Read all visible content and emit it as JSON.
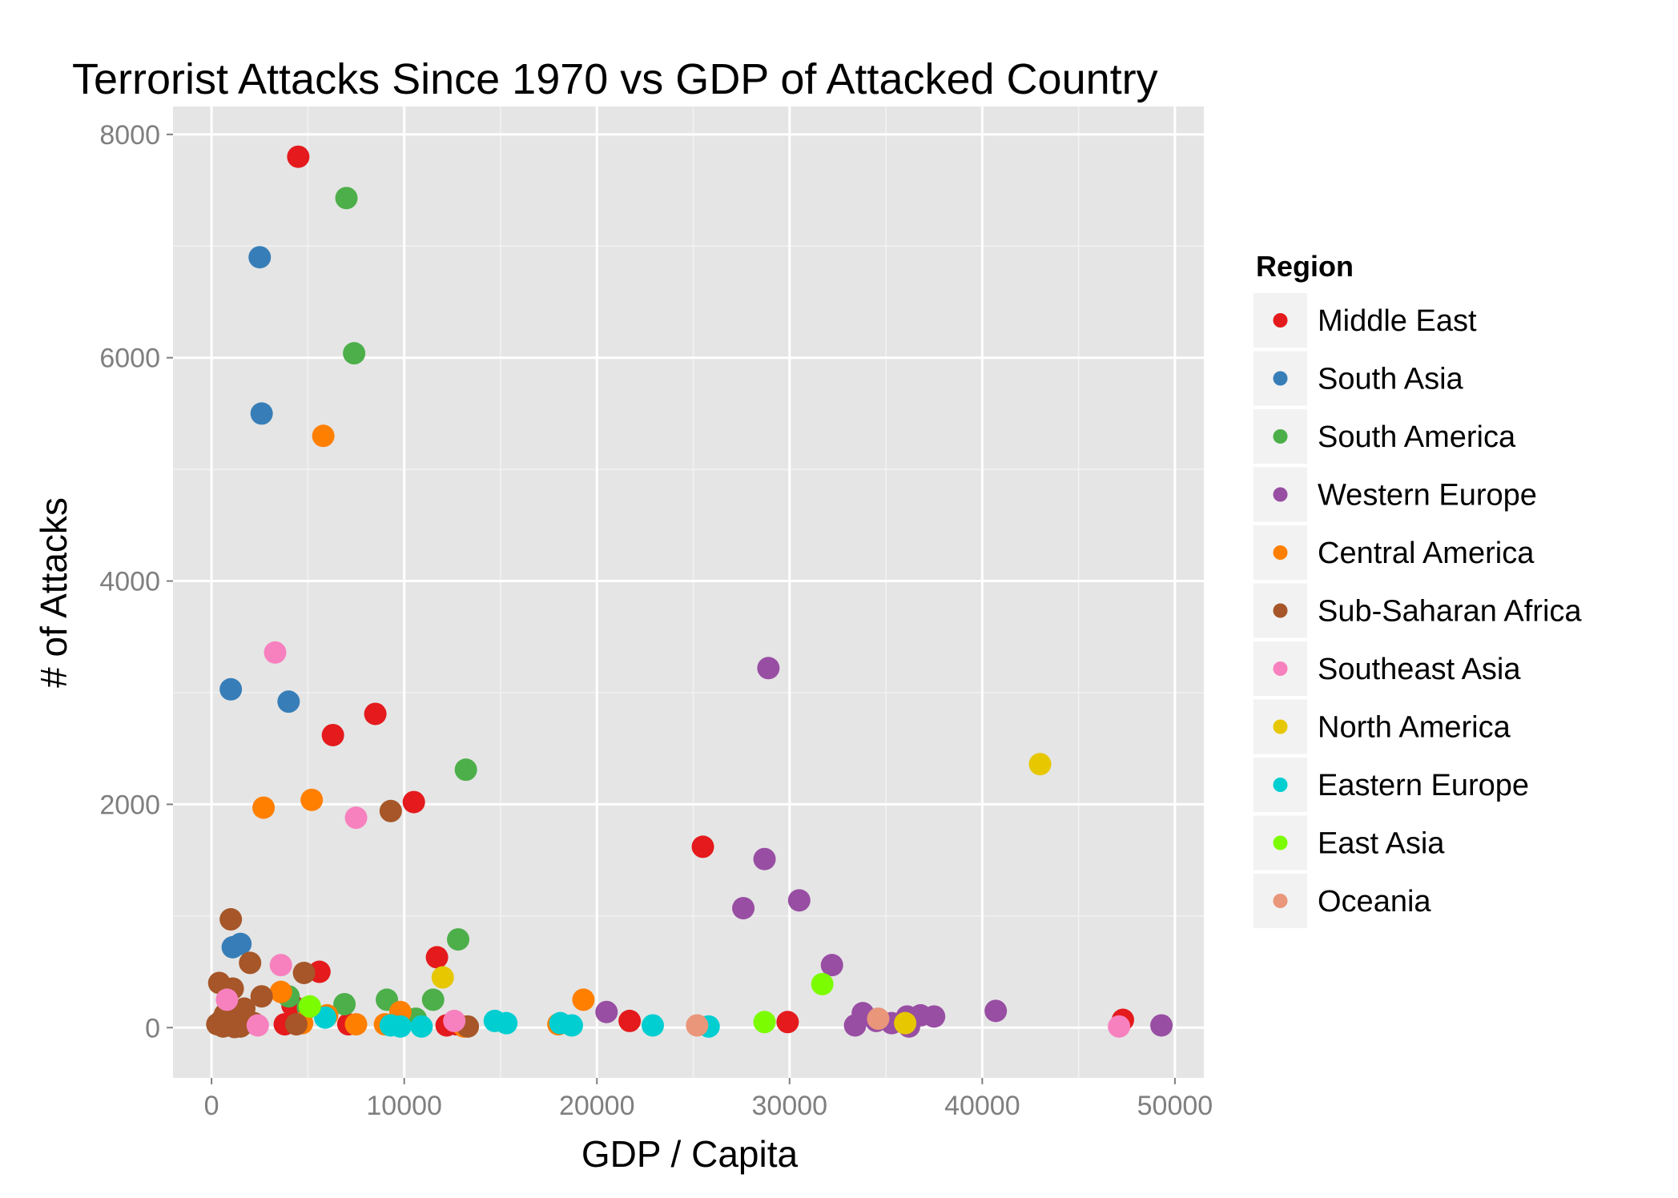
{
  "chart_data": {
    "type": "scatter",
    "title": "Terrorist Attacks Since 1970 vs GDP of Attacked Country",
    "xlabel": "GDP / Capita",
    "ylabel": "# of Attacks",
    "xlim": [
      -2000,
      51500
    ],
    "ylim": [
      -450,
      8250
    ],
    "x_ticks": [
      0,
      10000,
      20000,
      30000,
      40000,
      50000
    ],
    "x_tick_labels": [
      "0",
      "10000",
      "20000",
      "30000",
      "40000",
      "50000"
    ],
    "y_ticks": [
      0,
      2000,
      4000,
      6000,
      8000
    ],
    "y_tick_labels": [
      "0",
      "2000",
      "4000",
      "6000",
      "8000"
    ],
    "grid": true,
    "legend": {
      "title": "Region",
      "position": "right"
    },
    "series": [
      {
        "name": "Middle East",
        "color": "#E41A1C",
        "points": [
          [
            4500,
            7800
          ],
          [
            6300,
            2620
          ],
          [
            8500,
            2810
          ],
          [
            10500,
            2020
          ],
          [
            5600,
            500
          ],
          [
            11700,
            630
          ],
          [
            4200,
            200
          ],
          [
            3800,
            30
          ],
          [
            7100,
            30
          ],
          [
            12200,
            20
          ],
          [
            12700,
            30
          ],
          [
            21700,
            60
          ],
          [
            25500,
            1620
          ],
          [
            29900,
            50
          ],
          [
            47300,
            70
          ]
        ]
      },
      {
        "name": "South Asia",
        "color": "#377EB8",
        "points": [
          [
            2500,
            6900
          ],
          [
            2600,
            5500
          ],
          [
            1000,
            3030
          ],
          [
            4000,
            2920
          ],
          [
            1100,
            720
          ],
          [
            1500,
            750
          ],
          [
            900,
            60
          ],
          [
            1300,
            20
          ]
        ]
      },
      {
        "name": "South America",
        "color": "#4DAF4A",
        "points": [
          [
            7000,
            7430
          ],
          [
            7400,
            6040
          ],
          [
            13200,
            2310
          ],
          [
            12800,
            790
          ],
          [
            11500,
            250
          ],
          [
            9100,
            250
          ],
          [
            6900,
            210
          ],
          [
            10600,
            80
          ],
          [
            4000,
            280
          ],
          [
            5000,
            180
          ]
        ]
      },
      {
        "name": "Western Europe",
        "color": "#984EA3",
        "points": [
          [
            28900,
            3220
          ],
          [
            28700,
            1510
          ],
          [
            30500,
            1140
          ],
          [
            27600,
            1070
          ],
          [
            32200,
            560
          ],
          [
            20500,
            140
          ],
          [
            33800,
            130
          ],
          [
            33400,
            20
          ],
          [
            34500,
            60
          ],
          [
            35300,
            40
          ],
          [
            36100,
            100
          ],
          [
            36800,
            110
          ],
          [
            37500,
            100
          ],
          [
            40700,
            150
          ],
          [
            36200,
            10
          ],
          [
            49300,
            20
          ]
        ]
      },
      {
        "name": "Central America",
        "color": "#FF7F00",
        "points": [
          [
            5800,
            5300
          ],
          [
            2700,
            1970
          ],
          [
            5200,
            2040
          ],
          [
            3600,
            320
          ],
          [
            19300,
            250
          ],
          [
            9800,
            140
          ],
          [
            6000,
            110
          ],
          [
            7500,
            30
          ],
          [
            9000,
            30
          ],
          [
            18000,
            30
          ],
          [
            4700,
            40
          ],
          [
            13100,
            10
          ]
        ]
      },
      {
        "name": "Sub-Saharan Africa",
        "color": "#A65628",
        "points": [
          [
            1000,
            970
          ],
          [
            2000,
            580
          ],
          [
            4800,
            490
          ],
          [
            400,
            400
          ],
          [
            1100,
            350
          ],
          [
            2600,
            280
          ],
          [
            9300,
            1940
          ],
          [
            1700,
            170
          ],
          [
            700,
            120
          ],
          [
            1300,
            90
          ],
          [
            500,
            60
          ],
          [
            2200,
            40
          ],
          [
            4400,
            30
          ],
          [
            800,
            20
          ],
          [
            1500,
            10
          ],
          [
            600,
            10
          ],
          [
            1200,
            5
          ],
          [
            13300,
            10
          ],
          [
            1800,
            50
          ],
          [
            300,
            30
          ]
        ]
      },
      {
        "name": "Southeast Asia",
        "color": "#F781BF",
        "points": [
          [
            3300,
            3360
          ],
          [
            7500,
            1880
          ],
          [
            3600,
            560
          ],
          [
            800,
            250
          ],
          [
            2400,
            20
          ],
          [
            12600,
            60
          ],
          [
            47100,
            10
          ]
        ]
      },
      {
        "name": "North America",
        "color": "#E6C700",
        "points": [
          [
            43000,
            2360
          ],
          [
            12000,
            450
          ],
          [
            36000,
            40
          ]
        ]
      },
      {
        "name": "Eastern Europe",
        "color": "#00CED1",
        "points": [
          [
            14700,
            60
          ],
          [
            15300,
            40
          ],
          [
            18100,
            40
          ],
          [
            18700,
            20
          ],
          [
            22900,
            20
          ],
          [
            25800,
            10
          ],
          [
            9300,
            20
          ],
          [
            9800,
            10
          ],
          [
            10900,
            10
          ],
          [
            5900,
            90
          ]
        ]
      },
      {
        "name": "East Asia",
        "color": "#7CFC00",
        "points": [
          [
            31700,
            390
          ],
          [
            28700,
            50
          ],
          [
            5100,
            190
          ]
        ]
      },
      {
        "name": "Oceania",
        "color": "#E9967A",
        "points": [
          [
            25200,
            20
          ],
          [
            34600,
            80
          ]
        ]
      }
    ]
  }
}
